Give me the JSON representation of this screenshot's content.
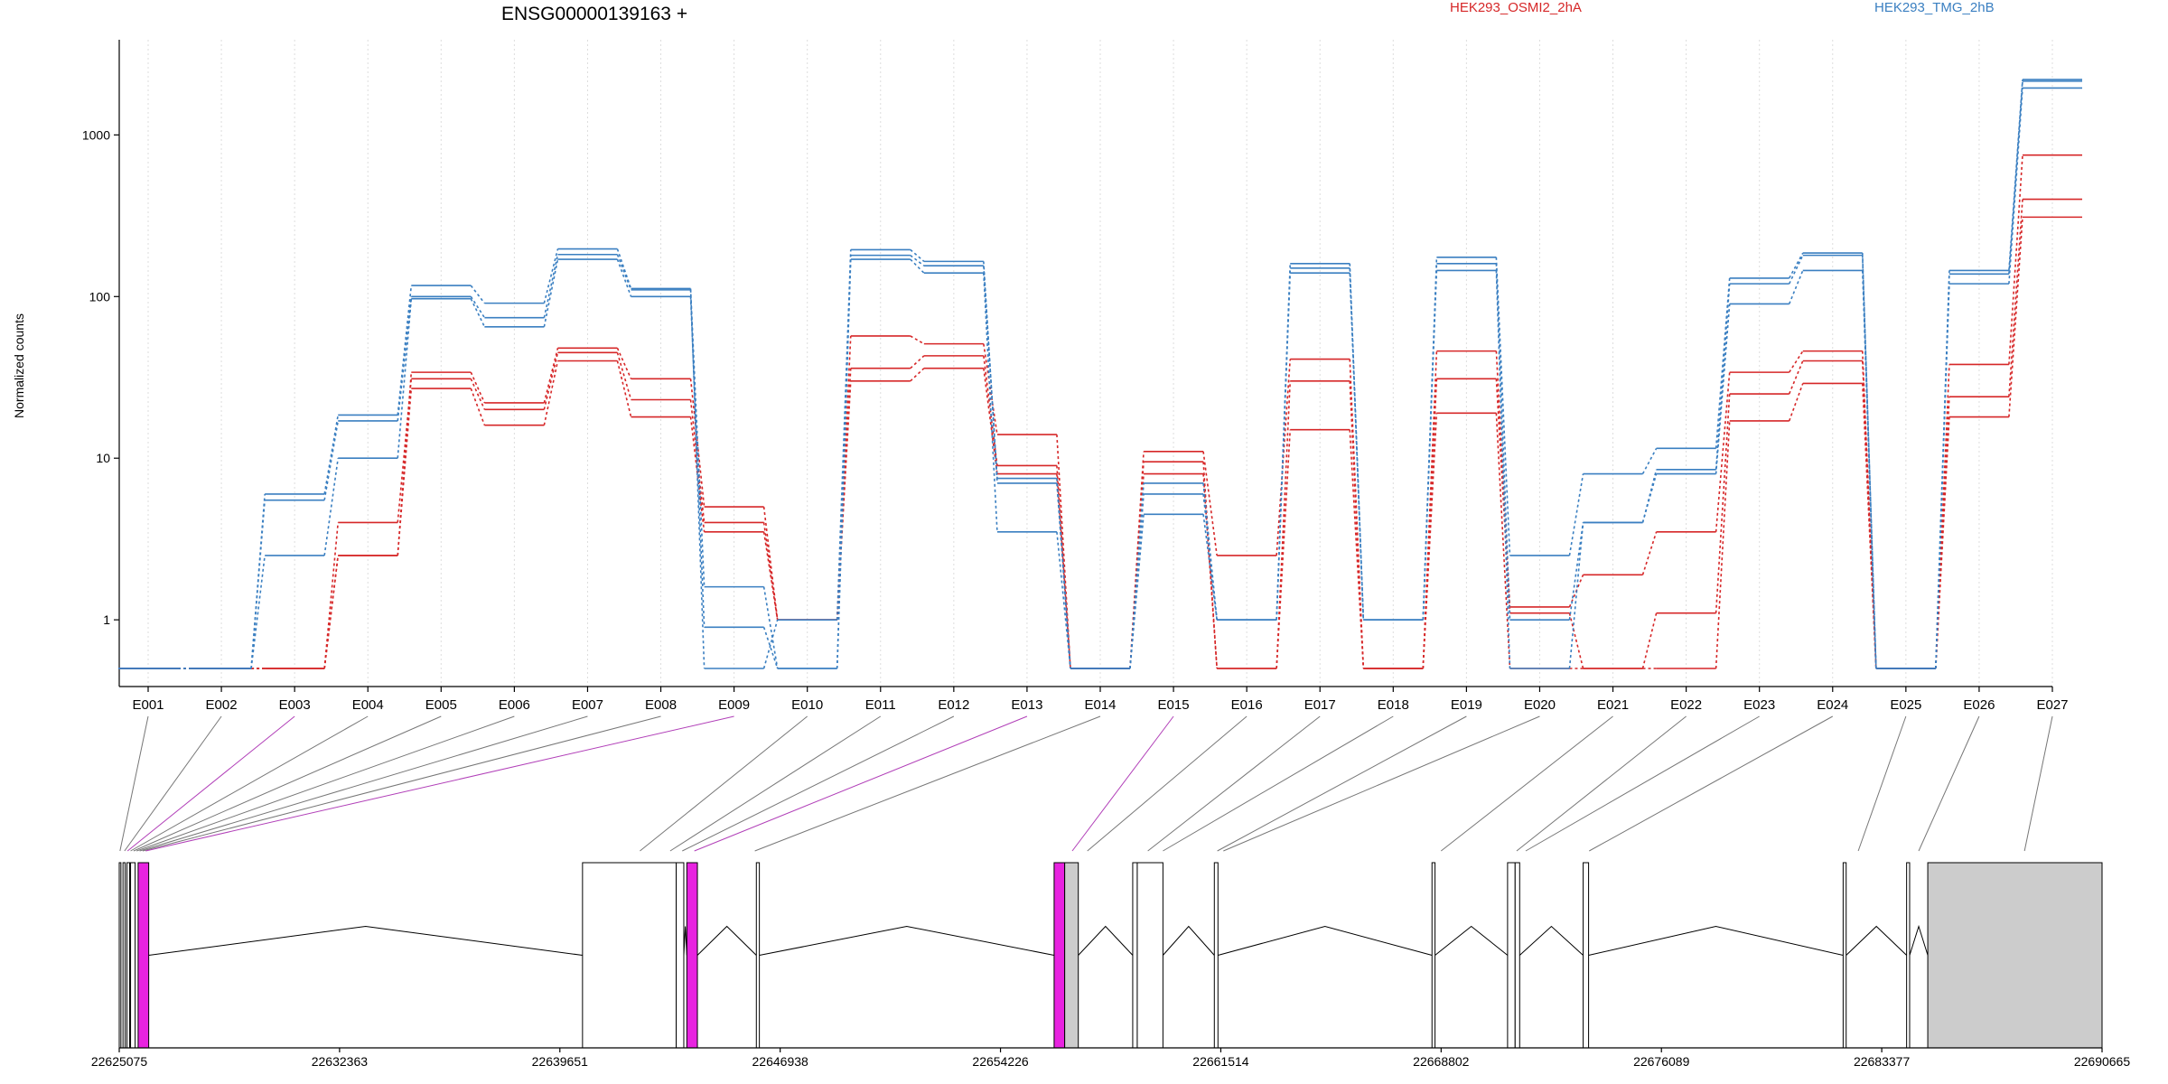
{
  "chart_data": {
    "type": "line",
    "title": "ENSG00000139163 +",
    "ylabel": "Normalized counts",
    "yscale": "log",
    "ylim": [
      0.5,
      3000
    ],
    "yticks": [
      "1",
      "10",
      "100",
      "1000"
    ],
    "grid": "vertical dotted at each exon",
    "legend": {
      "placement": "top-right",
      "entries": [
        {
          "name": "HEK293_OSMI2_2hA",
          "color": "#d62728"
        },
        {
          "name": "HEK293_TMG_2hB",
          "color": "#3a7fc1"
        }
      ]
    },
    "categories": [
      "E001",
      "E002",
      "E003",
      "E004",
      "E005",
      "E006",
      "E007",
      "E008",
      "E009",
      "E010",
      "E011",
      "E012",
      "E013",
      "E014",
      "E015",
      "E016",
      "E017",
      "E018",
      "E019",
      "E020",
      "E021",
      "E022",
      "E023",
      "E024",
      "E025",
      "E026",
      "E027"
    ],
    "series": [
      {
        "group": "HEK293_OSMI2_2hA",
        "color": "#d62728",
        "values": [
          0.5,
          0.5,
          0.5,
          2.5,
          34,
          22,
          48,
          31,
          5,
          1,
          57,
          51,
          14,
          0.5,
          11,
          2.5,
          41,
          0.5,
          46,
          1.2,
          1.9,
          3.5,
          34,
          46,
          0.5,
          38,
          750
        ]
      },
      {
        "group": "HEK293_OSMI2_2hA",
        "color": "#d62728",
        "values": [
          0.5,
          0.5,
          0.5,
          4,
          31,
          20,
          45,
          23,
          4,
          1,
          36,
          43,
          9,
          0.5,
          9.5,
          0.5,
          30,
          0.5,
          31,
          1.1,
          0.5,
          1.1,
          25,
          40,
          0.5,
          24,
          400
        ]
      },
      {
        "group": "HEK293_OSMI2_2hA",
        "color": "#d62728",
        "values": [
          0.5,
          0.5,
          0.5,
          2.5,
          27,
          16,
          40,
          18,
          3.5,
          1,
          30,
          36,
          8,
          0.5,
          8,
          0.5,
          15,
          0.5,
          19,
          0.5,
          0.5,
          0.5,
          17,
          29,
          0.5,
          18,
          310
        ]
      },
      {
        "group": "HEK293_TMG_2hB",
        "color": "#3a7fc1",
        "values": [
          0.5,
          0.5,
          6,
          18.5,
          117,
          91,
          197,
          112,
          0.5,
          1,
          195,
          165,
          7,
          0.5,
          7,
          1,
          160,
          1,
          175,
          2.5,
          8,
          11.5,
          130,
          186,
          0.5,
          145,
          2200
        ]
      },
      {
        "group": "HEK293_TMG_2hB",
        "color": "#3a7fc1",
        "values": [
          0.5,
          0.5,
          5.5,
          17,
          100,
          74,
          182,
          110,
          1.6,
          0.5,
          180,
          155,
          7.5,
          0.5,
          6,
          1,
          150,
          1,
          160,
          1,
          4,
          8.5,
          120,
          180,
          0.5,
          138,
          2150
        ]
      },
      {
        "group": "HEK293_TMG_2hB",
        "color": "#3a7fc1",
        "values": [
          0.5,
          0.5,
          2.5,
          10,
          97,
          65,
          170,
          100,
          0.9,
          0.5,
          170,
          140,
          3.5,
          0.5,
          4.5,
          1,
          140,
          1,
          145,
          0.5,
          4,
          8,
          90,
          145,
          0.5,
          120,
          1950
        ]
      }
    ]
  },
  "gene_model": {
    "coord_ticks": [
      "22625075",
      "22632363",
      "22639651",
      "22646938",
      "22654226",
      "22661514",
      "22668802",
      "22676089",
      "22683377",
      "22690665"
    ],
    "coord_range": [
      22625075,
      22690665
    ],
    "highlight_color": "#e823e0",
    "utr_color": "#cccccc",
    "exon_links": [
      {
        "exon": "E001",
        "pos": 22625100,
        "highlight": false
      },
      {
        "exon": "E002",
        "pos": 22625250,
        "highlight": false
      },
      {
        "exon": "E003",
        "pos": 22625350,
        "highlight": true
      },
      {
        "exon": "E004",
        "pos": 22625450,
        "highlight": false
      },
      {
        "exon": "E005",
        "pos": 22625550,
        "highlight": false
      },
      {
        "exon": "E006",
        "pos": 22625650,
        "highlight": false
      },
      {
        "exon": "E007",
        "pos": 22625750,
        "highlight": false
      },
      {
        "exon": "E008",
        "pos": 22625850,
        "highlight": false
      },
      {
        "exon": "E009",
        "pos": 22625950,
        "highlight": true
      },
      {
        "exon": "E010",
        "pos": 22642300,
        "highlight": false
      },
      {
        "exon": "E011",
        "pos": 22643300,
        "highlight": false
      },
      {
        "exon": "E012",
        "pos": 22643700,
        "highlight": false
      },
      {
        "exon": "E013",
        "pos": 22644100,
        "highlight": true
      },
      {
        "exon": "E014",
        "pos": 22646100,
        "highlight": false
      },
      {
        "exon": "E015",
        "pos": 22656600,
        "highlight": true
      },
      {
        "exon": "E016",
        "pos": 22657100,
        "highlight": false
      },
      {
        "exon": "E017",
        "pos": 22659100,
        "highlight": false
      },
      {
        "exon": "E018",
        "pos": 22659600,
        "highlight": false
      },
      {
        "exon": "E019",
        "pos": 22661400,
        "highlight": false
      },
      {
        "exon": "E020",
        "pos": 22661600,
        "highlight": false
      },
      {
        "exon": "E021",
        "pos": 22668800,
        "highlight": false
      },
      {
        "exon": "E022",
        "pos": 22671300,
        "highlight": false
      },
      {
        "exon": "E023",
        "pos": 22671600,
        "highlight": false
      },
      {
        "exon": "E024",
        "pos": 22673700,
        "highlight": false
      },
      {
        "exon": "E025",
        "pos": 22682600,
        "highlight": false
      },
      {
        "exon": "E026",
        "pos": 22684600,
        "highlight": false
      },
      {
        "exon": "E027",
        "pos": 22688100,
        "highlight": false
      }
    ],
    "exon_blocks": [
      {
        "start": 22625075,
        "end": 22625130,
        "kind": "plain"
      },
      {
        "start": 22625200,
        "end": 22625270,
        "kind": "plain"
      },
      {
        "start": 22625330,
        "end": 22625420,
        "kind": "plain"
      },
      {
        "start": 22625450,
        "end": 22625600,
        "kind": "plain"
      },
      {
        "start": 22625700,
        "end": 22626050,
        "kind": "highlight"
      },
      {
        "start": 22640400,
        "end": 22643500,
        "kind": "plain"
      },
      {
        "start": 22643500,
        "end": 22643750,
        "kind": "plain"
      },
      {
        "start": 22643850,
        "end": 22644200,
        "kind": "highlight"
      },
      {
        "start": 22646150,
        "end": 22646250,
        "kind": "plain"
      },
      {
        "start": 22656000,
        "end": 22656350,
        "kind": "highlight"
      },
      {
        "start": 22656350,
        "end": 22656800,
        "kind": "utr"
      },
      {
        "start": 22658600,
        "end": 22658750,
        "kind": "plain"
      },
      {
        "start": 22658750,
        "end": 22659600,
        "kind": "plain"
      },
      {
        "start": 22661300,
        "end": 22661420,
        "kind": "plain"
      },
      {
        "start": 22668500,
        "end": 22668600,
        "kind": "plain"
      },
      {
        "start": 22671000,
        "end": 22671250,
        "kind": "plain"
      },
      {
        "start": 22671250,
        "end": 22671400,
        "kind": "plain"
      },
      {
        "start": 22673500,
        "end": 22673680,
        "kind": "plain"
      },
      {
        "start": 22682100,
        "end": 22682200,
        "kind": "plain"
      },
      {
        "start": 22684200,
        "end": 22684300,
        "kind": "plain"
      },
      {
        "start": 22684900,
        "end": 22690665,
        "kind": "utr"
      }
    ],
    "introns": [
      [
        22626050,
        22640400
      ],
      [
        22643750,
        22643850
      ],
      [
        22644200,
        22646150
      ],
      [
        22646250,
        22656000
      ],
      [
        22656800,
        22658600
      ],
      [
        22659600,
        22661300
      ],
      [
        22661420,
        22668500
      ],
      [
        22668600,
        22671000
      ],
      [
        22671400,
        22673500
      ],
      [
        22673680,
        22682100
      ],
      [
        22682200,
        22684200
      ],
      [
        22684300,
        22684900
      ]
    ]
  }
}
